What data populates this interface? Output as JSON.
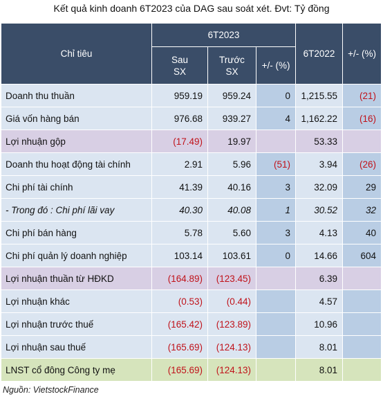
{
  "title": "Kết quả kinh doanh 6T2023 của DAG sau soát xét. Đvt: Tỷ đồng",
  "header": {
    "col_indicator": "Chỉ tiêu",
    "group_6t2023": "6T2023",
    "after_line1": "Sau",
    "after_line2": "SX",
    "before_line1": "Trước",
    "before_line2": "SX",
    "change_pct": "+/- (%)",
    "col_6t2022": "6T2022",
    "change_pct_2022": "+/- (%)"
  },
  "rows": [
    {
      "label": "Doanh thu thuần",
      "after": "959.19",
      "before": "959.24",
      "chg": "0",
      "prev": "1,215.55",
      "chg2": "(21)"
    },
    {
      "label": "Giá vốn hàng bán",
      "after": "976.68",
      "before": "939.27",
      "chg": "4",
      "prev": "1,162.22",
      "chg2": "(16)"
    },
    {
      "label": "Lợi nhuận gộp",
      "after": "(17.49)",
      "before": "19.97",
      "chg": "",
      "prev": "53.33",
      "chg2": ""
    },
    {
      "label": "Doanh thu hoạt động tài chính",
      "after": "2.91",
      "before": "5.96",
      "chg": "(51)",
      "prev": "3.94",
      "chg2": "(26)"
    },
    {
      "label": "Chi phí tài chính",
      "after": "41.39",
      "before": "40.16",
      "chg": "3",
      "prev": "32.09",
      "chg2": "29"
    },
    {
      "label": "- Trong đó : Chi phí lãi vay",
      "after": "40.30",
      "before": "40.08",
      "chg": "1",
      "prev": "30.52",
      "chg2": "32"
    },
    {
      "label": "Chi phí bán hàng",
      "after": "5.78",
      "before": "5.60",
      "chg": "3",
      "prev": "4.13",
      "chg2": "40"
    },
    {
      "label": "Chi phí quản lý doanh nghiệp",
      "after": "103.14",
      "before": "103.61",
      "chg": "0",
      "prev": "14.66",
      "chg2": "604"
    },
    {
      "label": "Lợi nhuận thuần từ HĐKD",
      "after": "(164.89)",
      "before": "(123.45)",
      "chg": "",
      "prev": "6.39",
      "chg2": ""
    },
    {
      "label": "Lợi nhuận khác",
      "after": "(0.53)",
      "before": "(0.44)",
      "chg": "",
      "prev": "4.57",
      "chg2": ""
    },
    {
      "label": "Lợi nhuận trước thuế",
      "after": "(165.42)",
      "before": "(123.89)",
      "chg": "",
      "prev": "10.96",
      "chg2": ""
    },
    {
      "label": "Lợi nhuận sau thuế",
      "after": "(165.69)",
      "before": "(124.13)",
      "chg": "",
      "prev": "8.01",
      "chg2": ""
    },
    {
      "label": "LNST cổ đông Công ty mẹ",
      "after": "(165.69)",
      "before": "(124.13)",
      "chg": "",
      "prev": "8.01",
      "chg2": ""
    }
  ],
  "source": "Nguồn: VietstockFinance",
  "colors": {
    "header_bg": "#3a4d68",
    "row_light": "#dbe5f1",
    "row_dark_col": "#b9cde4",
    "row_purple": "#d8cfe4",
    "row_green": "#d6e4bc",
    "negative_text": "#c0121a"
  }
}
